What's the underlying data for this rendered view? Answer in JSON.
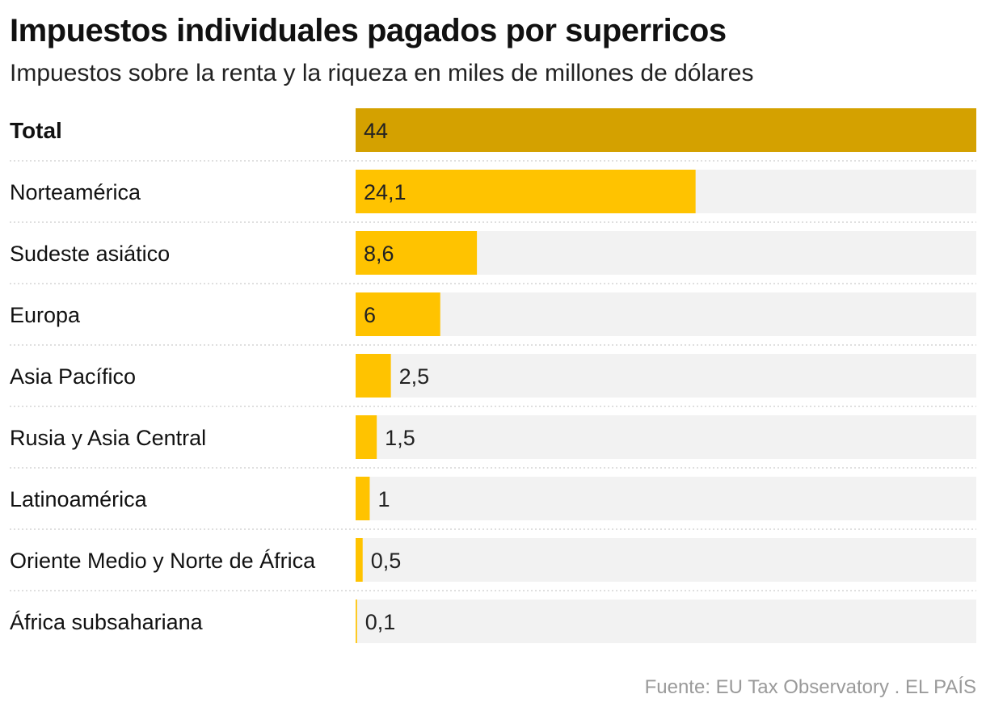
{
  "chart_title": "Impuestos individuales pagados por superricos",
  "chart_subtitle": "Impuestos sobre la renta y la riqueza en miles de millones de dólares",
  "source": "Fuente: EU Tax Observatory . EL PAÍS",
  "colors": {
    "total_bar": "#D4A100",
    "bar": "#FFC300",
    "track": "#F2F2F2",
    "separator": "#CCCCCC",
    "source_text": "#9A9A9A"
  },
  "chart_data": {
    "type": "bar",
    "orientation": "horizontal",
    "categories": [
      "Total",
      "Norteamérica",
      "Sudeste asiático",
      "Europa",
      "Asia Pacífico",
      "Rusia y Asia Central",
      "Latinoamérica",
      "Oriente Medio y Norte de África",
      "África subsahariana"
    ],
    "values": [
      44,
      24.1,
      8.6,
      6,
      2.5,
      1.5,
      1,
      0.5,
      0.1
    ],
    "value_labels": [
      "44",
      "24,1",
      "8,6",
      "6",
      "2,5",
      "1,5",
      "1",
      "0,5",
      "0,1"
    ],
    "highlight": "Total",
    "xlim": [
      0,
      44
    ],
    "grid": false,
    "legend": "none"
  }
}
